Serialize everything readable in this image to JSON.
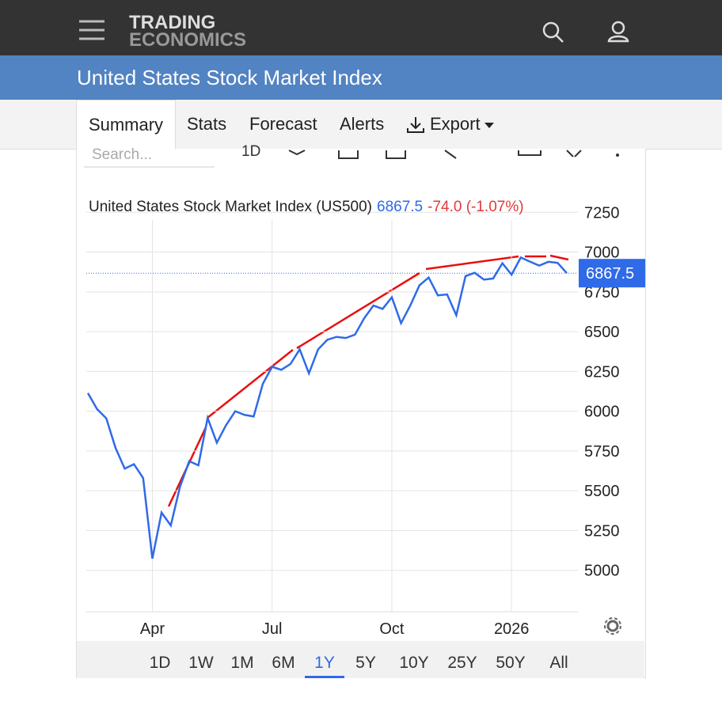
{
  "header": {
    "brand_line1": "TRADING",
    "brand_line2": "ECONOMICS"
  },
  "page_title": "United States Stock Market Index",
  "tabs": [
    "Summary",
    "Stats",
    "Forecast",
    "Alerts",
    "Export"
  ],
  "toolbar": {
    "search_placeholder": "Search...",
    "interval": "1D"
  },
  "chart_data": {
    "type": "line",
    "title": "United States Stock Market Index (US500)",
    "last": "6867.5",
    "change": "-74.0 (-1.07%)",
    "last_tag": "6867.5",
    "categories": [
      null,
      null,
      null,
      null,
      null,
      null,
      null,
      "Apr",
      null,
      null,
      null,
      null,
      null,
      null,
      null,
      null,
      null,
      null,
      null,
      null,
      "Jul",
      null,
      null,
      null,
      null,
      null,
      null,
      null,
      null,
      null,
      null,
      null,
      null,
      "Oct",
      null,
      null,
      null,
      null,
      null,
      null,
      null,
      null,
      null,
      null,
      null,
      null,
      "2026",
      null,
      null,
      null,
      null,
      null,
      null
    ],
    "color": "#2f6ae8",
    "values": [
      6114,
      6013,
      5955,
      5770,
      5639,
      5667,
      5580,
      5074,
      5363,
      5282,
      5525,
      5686,
      5660,
      5958,
      5802,
      5912,
      6000,
      5977,
      5967,
      6173,
      6279,
      6260,
      6297,
      6389,
      6238,
      6389,
      6449,
      6467,
      6460,
      6481,
      6584,
      6664,
      6643,
      6716,
      6553,
      6664,
      6791,
      6840,
      6728,
      6734,
      6603,
      6849,
      6870,
      6827,
      6834,
      6930,
      6858,
      6966,
      6940,
      6915,
      6939,
      6932,
      6867.5
    ],
    "ylim": [
      4740,
      7500
    ],
    "yticks": [
      5000,
      5250,
      5500,
      5750,
      6000,
      6250,
      6500,
      6750,
      7000,
      7250
    ],
    "grid": true
  },
  "ranges": [
    "1D",
    "1W",
    "1M",
    "6M",
    "1Y",
    "5Y",
    "10Y",
    "25Y",
    "50Y",
    "All"
  ],
  "active_range": 4
}
